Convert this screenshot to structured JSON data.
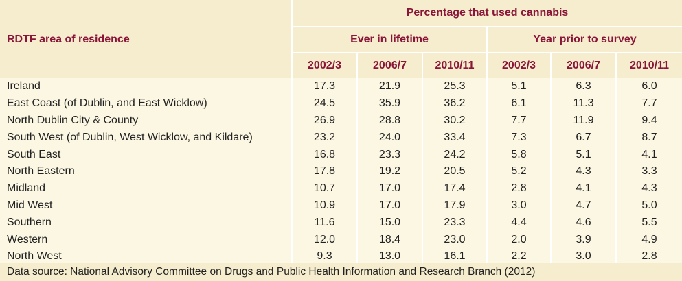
{
  "header": {
    "group_title": "Percentage that used cannabis",
    "row_header": "RDTF area of residence",
    "subgroups": [
      "Ever in lifetime",
      "Year prior to survey"
    ],
    "years": [
      "2002/3",
      "2006/7",
      "2010/11",
      "2002/3",
      "2006/7",
      "2010/11"
    ]
  },
  "rows": [
    {
      "area": "Ireland",
      "values": [
        "17.3",
        "21.9",
        "25.3",
        "5.1",
        "6.3",
        "6.0"
      ]
    },
    {
      "area": "East Coast (of Dublin, and East Wicklow)",
      "values": [
        "24.5",
        "35.9",
        "36.2",
        "6.1",
        "11.3",
        "7.7"
      ]
    },
    {
      "area": "North Dublin City & County",
      "values": [
        "26.9",
        "28.8",
        "30.2",
        "7.7",
        "11.9",
        "9.4"
      ]
    },
    {
      "area": "South West (of Dublin, West Wicklow, and Kildare)",
      "values": [
        "23.2",
        "24.0",
        "33.4",
        "7.3",
        "6.7",
        "8.7"
      ]
    },
    {
      "area": "South East",
      "values": [
        "16.8",
        "23.3",
        "24.2",
        "5.8",
        "5.1",
        "4.1"
      ]
    },
    {
      "area": "North Eastern",
      "values": [
        "17.8",
        "19.2",
        "20.5",
        "5.2",
        "4.3",
        "3.3"
      ]
    },
    {
      "area": "Midland",
      "values": [
        "10.7",
        "17.0",
        "17.4",
        "2.8",
        "4.1",
        "4.3"
      ]
    },
    {
      "area": "Mid West",
      "values": [
        "10.9",
        "17.0",
        "17.9",
        "3.0",
        "4.7",
        "5.0"
      ]
    },
    {
      "area": "Southern",
      "values": [
        "11.6",
        "15.0",
        "23.3",
        "4.4",
        "4.6",
        "5.5"
      ]
    },
    {
      "area": "Western",
      "values": [
        "12.0",
        "18.4",
        "23.0",
        "2.0",
        "3.9",
        "4.9"
      ]
    },
    {
      "area": "North West",
      "values": [
        "9.3",
        "13.0",
        "16.1",
        "2.2",
        "3.0",
        "2.8"
      ]
    }
  ],
  "footer": "Data source: National Advisory Committee on Drugs and Public Health Information and Research Branch (2012)",
  "colors": {
    "header_text": "#8a1538",
    "header_bg": "#f5edce",
    "body_bg": "#fcf7e3"
  }
}
